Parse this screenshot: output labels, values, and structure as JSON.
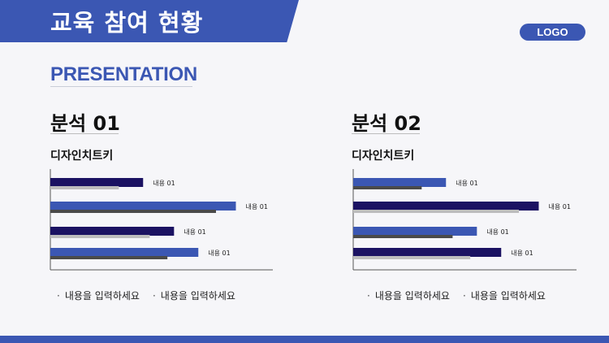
{
  "header": {
    "title": "교육 참여 현황"
  },
  "logo": "LOGO",
  "presentation": "PRESENTATION",
  "colors": {
    "accent": "#3b57b3",
    "navy": "#1b1262",
    "light_gray": "#bdbdbd",
    "dark_gray": "#4a4a4a"
  },
  "panels": [
    {
      "title": "분석 01",
      "subtitle": "디자인치트키",
      "bullets": [
        "내용을 입력하세요",
        "내용을 입력하세요"
      ]
    },
    {
      "title": "분석 02",
      "subtitle": "디자인치트키",
      "bullets": [
        "내용을 입력하세요",
        "내용을 입력하세요"
      ]
    }
  ],
  "chart_data": [
    {
      "type": "bar",
      "orientation": "horizontal",
      "categories": [
        "내용 01",
        "내용 01",
        "내용 01",
        "내용 01"
      ],
      "series": [
        {
          "values": [
            42,
            84,
            56,
            67
          ],
          "colors": [
            "#1b1262",
            "#3b57b3",
            "#1b1262",
            "#3b57b3"
          ]
        },
        {
          "values": [
            31,
            75,
            45,
            53
          ],
          "colors": [
            "#bdbdbd",
            "#4a4a4a",
            "#bdbdbd",
            "#4a4a4a"
          ]
        }
      ],
      "xlim": [
        0,
        100
      ],
      "data_labels": [
        "내용 01",
        "내용 01",
        "내용 01",
        "내용 01"
      ]
    },
    {
      "type": "bar",
      "orientation": "horizontal",
      "categories": [
        "내용 01",
        "내용 01",
        "내용 01",
        "내용 01"
      ],
      "series": [
        {
          "values": [
            42,
            84,
            56,
            67
          ],
          "colors": [
            "#3b57b3",
            "#1b1262",
            "#3b57b3",
            "#1b1262"
          ]
        },
        {
          "values": [
            31,
            75,
            45,
            53
          ],
          "colors": [
            "#4a4a4a",
            "#bdbdbd",
            "#4a4a4a",
            "#bdbdbd"
          ]
        }
      ],
      "xlim": [
        0,
        100
      ],
      "data_labels": [
        "내용 01",
        "내용 01",
        "내용 01",
        "내용 01"
      ]
    }
  ]
}
